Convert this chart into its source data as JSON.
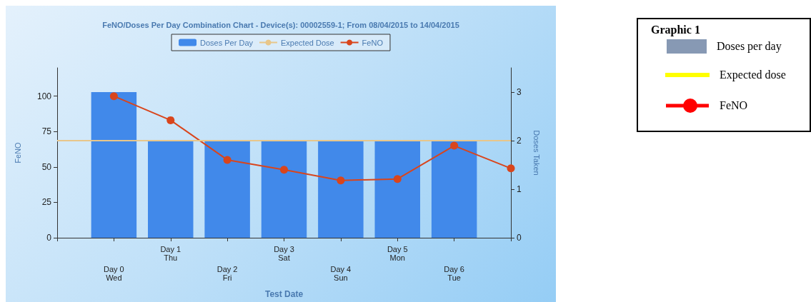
{
  "chart_data": {
    "type": "bar",
    "title": "FeNO/Doses Per Day Combination Chart - Device(s): 00002559-1; From 08/04/2015 to 14/04/2015",
    "xlabel": "Test Date",
    "ylabel": "FeNO",
    "y2label": "Doses Taken",
    "categories": [
      null,
      "Day 0\nWed",
      "Day 1\nThu",
      "Day 2\nFri",
      "Day 3\nSat",
      "Day 4\nSun",
      "Day 5\nMon",
      "Day 6\nTue",
      null
    ],
    "series": [
      {
        "name": "Doses Per Day",
        "axis": "y2",
        "color": "#4189ea",
        "values": [
          null,
          3,
          2,
          2,
          2,
          2,
          2,
          2,
          null
        ]
      },
      {
        "name": "FeNO",
        "type": "line",
        "axis": "y",
        "color": "#d9451c",
        "marker": "circle",
        "values": [
          null,
          100,
          83,
          55,
          48,
          40.5,
          41.5,
          65,
          49
        ]
      }
    ],
    "ref_lines": [
      {
        "axis": "y2",
        "value": 2,
        "label": "Expected Dose",
        "color": "#e8c68a"
      }
    ],
    "ylim": [
      0,
      120
    ],
    "yticks": [
      0,
      25,
      50,
      75,
      100
    ],
    "y2lim": [
      0,
      3.5
    ],
    "y2ticks": [
      0,
      1,
      2,
      3
    ],
    "grid": false,
    "legend": "top",
    "annotations": [
      "Graphic 1",
      "Doses per day",
      "Expected dose",
      "FeNO"
    ]
  }
}
